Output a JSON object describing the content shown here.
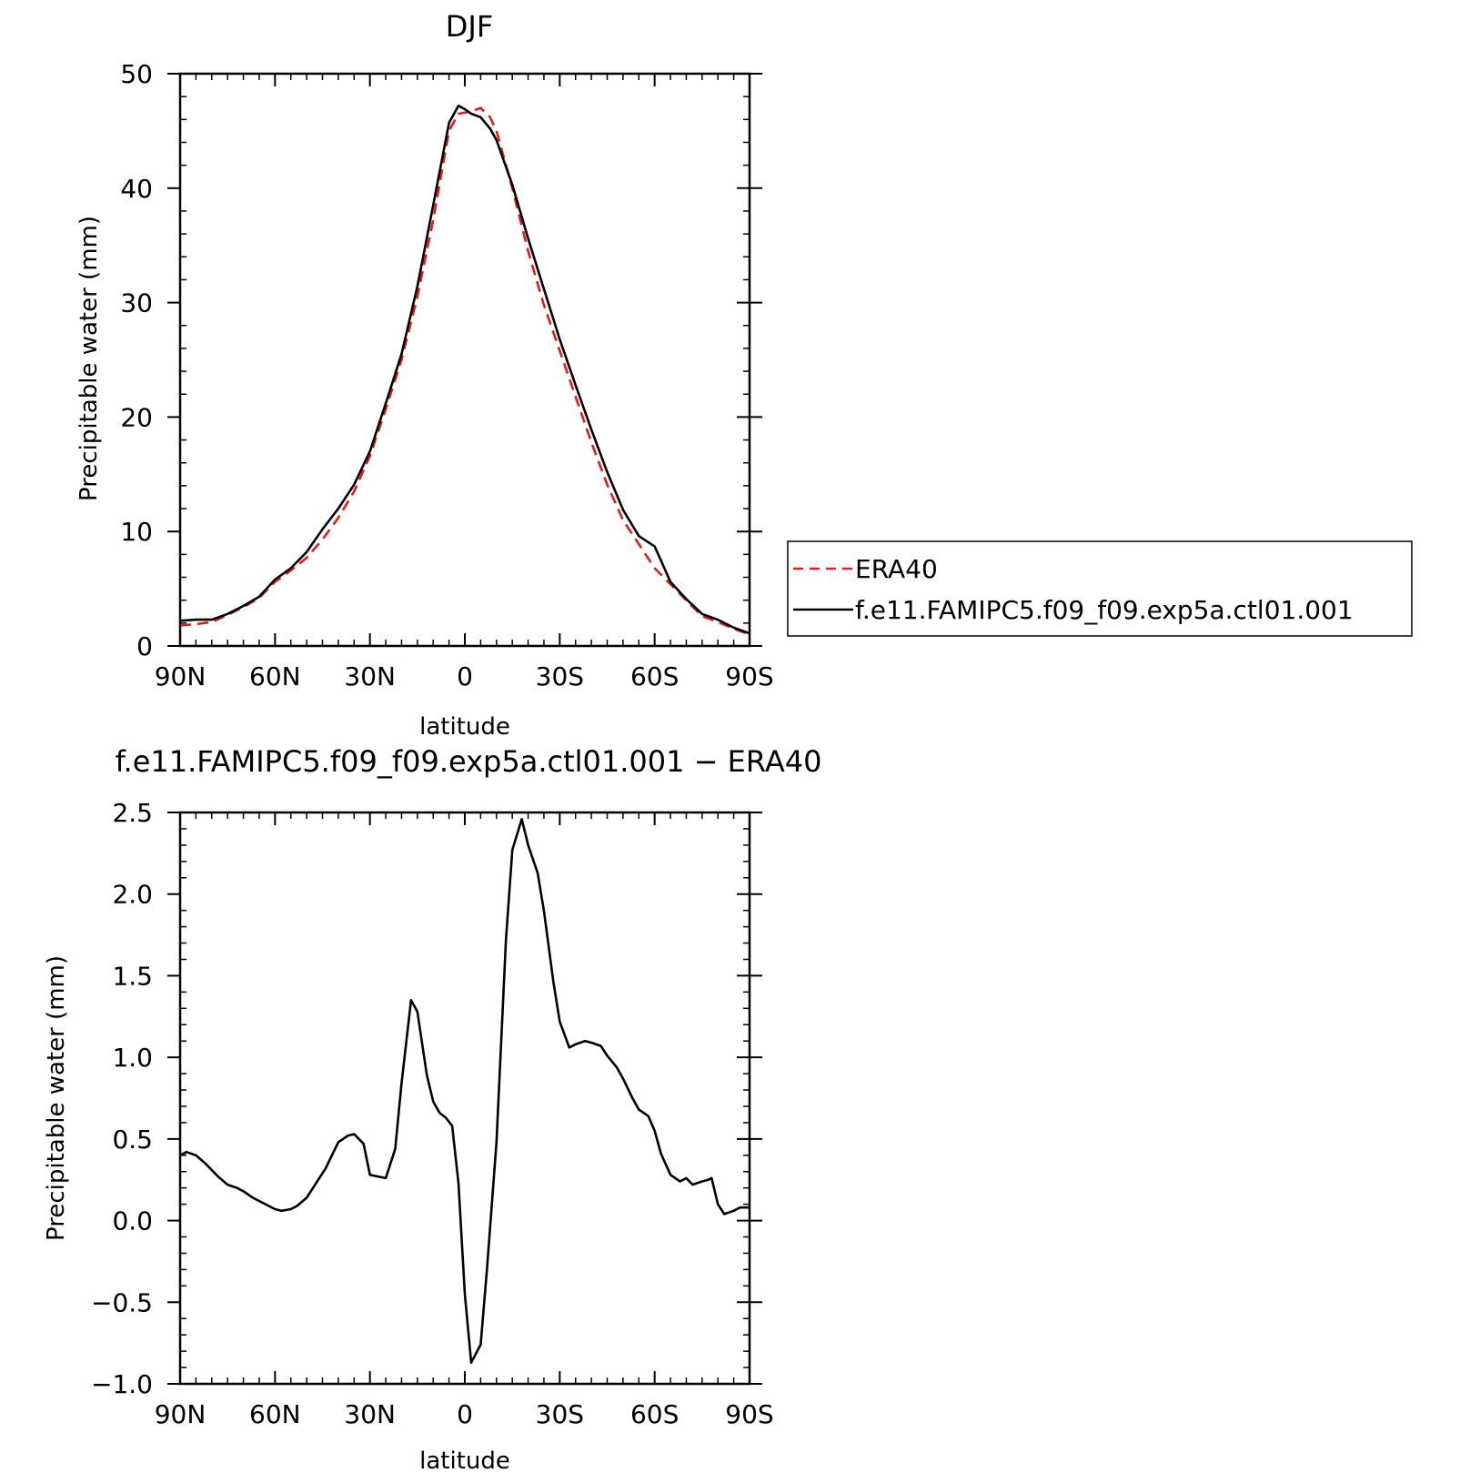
{
  "chart_data": [
    {
      "type": "line",
      "title": "DJF",
      "xlabel": "latitude",
      "ylabel": "Precipitable water (mm)",
      "xlim": [
        90,
        -90
      ],
      "ylim": [
        0,
        50
      ],
      "xticks": [
        {
          "value": 90,
          "label": "90N"
        },
        {
          "value": 60,
          "label": "60N"
        },
        {
          "value": 30,
          "label": "30N"
        },
        {
          "value": 0,
          "label": "0"
        },
        {
          "value": -30,
          "label": "30S"
        },
        {
          "value": -60,
          "label": "60S"
        },
        {
          "value": -90,
          "label": "90S"
        }
      ],
      "yticks": [
        {
          "value": 0,
          "label": "0"
        },
        {
          "value": 10,
          "label": "10"
        },
        {
          "value": 20,
          "label": "20"
        },
        {
          "value": 30,
          "label": "30"
        },
        {
          "value": 40,
          "label": "40"
        },
        {
          "value": 50,
          "label": "50"
        }
      ],
      "legend_position": "right",
      "series": [
        {
          "name": "ERA40",
          "color": "#e41a1c",
          "dash": "dashed",
          "x": [
            90,
            85,
            80,
            75,
            70,
            65,
            60,
            55,
            50,
            45,
            40,
            35,
            30,
            25,
            20,
            15,
            10,
            5,
            2,
            0,
            -2,
            -5,
            -8,
            -10,
            -15,
            -20,
            -25,
            -30,
            -35,
            -40,
            -45,
            -50,
            -55,
            -60,
            -65,
            -70,
            -75,
            -80,
            -85,
            -90
          ],
          "y": [
            1.8,
            1.9,
            2.1,
            2.7,
            3.4,
            4.2,
            5.6,
            6.6,
            7.7,
            9.3,
            11.2,
            13.5,
            16.6,
            20.7,
            25.0,
            30.5,
            37.2,
            45.0,
            46.5,
            46.6,
            46.7,
            47.0,
            46.2,
            45.0,
            40.0,
            34.5,
            29.8,
            25.8,
            21.8,
            17.8,
            14.1,
            11.0,
            8.9,
            6.8,
            5.4,
            4.0,
            2.6,
            2.1,
            1.5,
            1.0
          ]
        },
        {
          "name": "f.e11.FAMIPC5.f09_f09.exp5a.ctl01.001",
          "color": "#000000",
          "dash": "solid",
          "x": [
            90,
            85,
            80,
            75,
            70,
            65,
            60,
            55,
            50,
            45,
            40,
            35,
            30,
            25,
            20,
            15,
            10,
            5,
            2,
            0,
            -2,
            -5,
            -8,
            -10,
            -15,
            -20,
            -25,
            -30,
            -35,
            -40,
            -45,
            -50,
            -55,
            -60,
            -65,
            -70,
            -75,
            -80,
            -85,
            -90
          ],
          "y": [
            2.2,
            2.3,
            2.3,
            2.8,
            3.5,
            4.3,
            5.8,
            6.8,
            8.2,
            10.2,
            12.0,
            14.1,
            17.0,
            21.2,
            25.5,
            31.4,
            38.5,
            45.7,
            47.2,
            46.9,
            46.5,
            46.2,
            45.2,
            44.2,
            40.3,
            35.6,
            31.2,
            26.8,
            22.8,
            18.9,
            15.2,
            11.9,
            9.6,
            8.7,
            5.6,
            4.1,
            2.8,
            2.3,
            1.6,
            1.1
          ]
        }
      ]
    },
    {
      "type": "line",
      "title": "f.e11.FAMIPC5.f09_f09.exp5a.ctl01.001  −  ERA40",
      "xlabel": "latitude",
      "ylabel": "Precipitable water (mm)",
      "xlim": [
        90,
        -90
      ],
      "ylim": [
        -1.0,
        2.5
      ],
      "xticks": [
        {
          "value": 90,
          "label": "90N"
        },
        {
          "value": 60,
          "label": "60N"
        },
        {
          "value": 30,
          "label": "30N"
        },
        {
          "value": 0,
          "label": "0"
        },
        {
          "value": -30,
          "label": "30S"
        },
        {
          "value": -60,
          "label": "60S"
        },
        {
          "value": -90,
          "label": "90S"
        }
      ],
      "yticks": [
        {
          "value": -1.0,
          "label": "−1.0"
        },
        {
          "value": -0.5,
          "label": "−0.5"
        },
        {
          "value": 0.0,
          "label": "0.0"
        },
        {
          "value": 0.5,
          "label": "0.5"
        },
        {
          "value": 1.0,
          "label": "1.0"
        },
        {
          "value": 1.5,
          "label": "1.5"
        },
        {
          "value": 2.0,
          "label": "2.0"
        },
        {
          "value": 2.5,
          "label": "2.5"
        }
      ],
      "series": [
        {
          "color": "#000000",
          "dash": "solid",
          "x": [
            90,
            88,
            85,
            82,
            78,
            75,
            72,
            70,
            67,
            63,
            60,
            58,
            55,
            53,
            50,
            48,
            46,
            44,
            42,
            40,
            37,
            35,
            32,
            30,
            25,
            22,
            20,
            17,
            15,
            12,
            10,
            8,
            6,
            4,
            2,
            0,
            -2,
            -5,
            -7,
            -10,
            -13,
            -15,
            -18,
            -20,
            -23,
            -25,
            -28,
            -30,
            -33,
            -35,
            -38,
            -40,
            -43,
            -45,
            -48,
            -50,
            -53,
            -55,
            -58,
            -60,
            -62,
            -65,
            -68,
            -70,
            -72,
            -75,
            -77,
            -78,
            -80,
            -82,
            -85,
            -87,
            -90
          ],
          "y": [
            0.4,
            0.42,
            0.4,
            0.35,
            0.27,
            0.22,
            0.2,
            0.18,
            0.14,
            0.1,
            0.07,
            0.06,
            0.07,
            0.09,
            0.14,
            0.2,
            0.26,
            0.32,
            0.4,
            0.48,
            0.52,
            0.53,
            0.47,
            0.28,
            0.26,
            0.44,
            0.84,
            1.35,
            1.28,
            0.89,
            0.73,
            0.66,
            0.63,
            0.58,
            0.23,
            -0.45,
            -0.87,
            -0.76,
            -0.3,
            0.48,
            1.72,
            2.27,
            2.46,
            2.3,
            2.13,
            1.9,
            1.46,
            1.22,
            1.06,
            1.08,
            1.1,
            1.09,
            1.07,
            1.01,
            0.94,
            0.87,
            0.75,
            0.68,
            0.64,
            0.55,
            0.41,
            0.28,
            0.24,
            0.26,
            0.22,
            0.24,
            0.25,
            0.26,
            0.1,
            0.04,
            0.06,
            0.08,
            0.08
          ]
        }
      ]
    }
  ]
}
